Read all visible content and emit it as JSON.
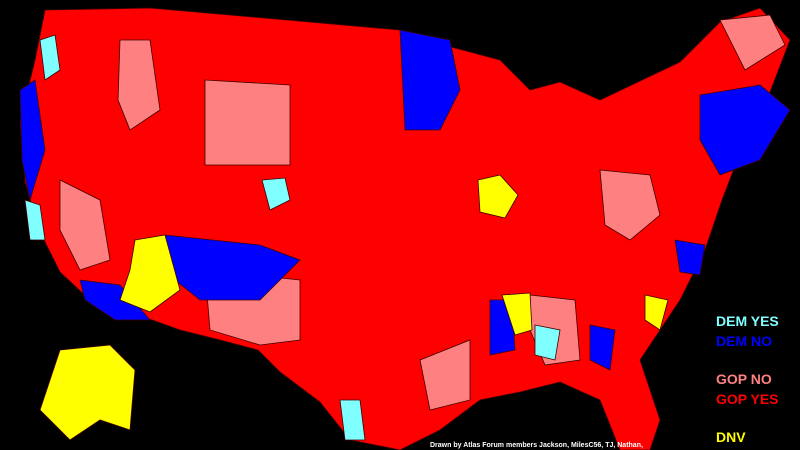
{
  "legend": [
    {
      "label": "DEM YES",
      "color": "#7fffff"
    },
    {
      "label": "DEM NO",
      "color": "#0000ff"
    },
    {
      "label": "GOP NO",
      "color": "#ff8080"
    },
    {
      "label": "GOP YES",
      "color": "#ff0000"
    },
    {
      "label": "DNV",
      "color": "#ffff00"
    }
  ],
  "credit": "Drawn by Atlas Forum members Jackson, MilesC56, TJ, Nathan,"
}
